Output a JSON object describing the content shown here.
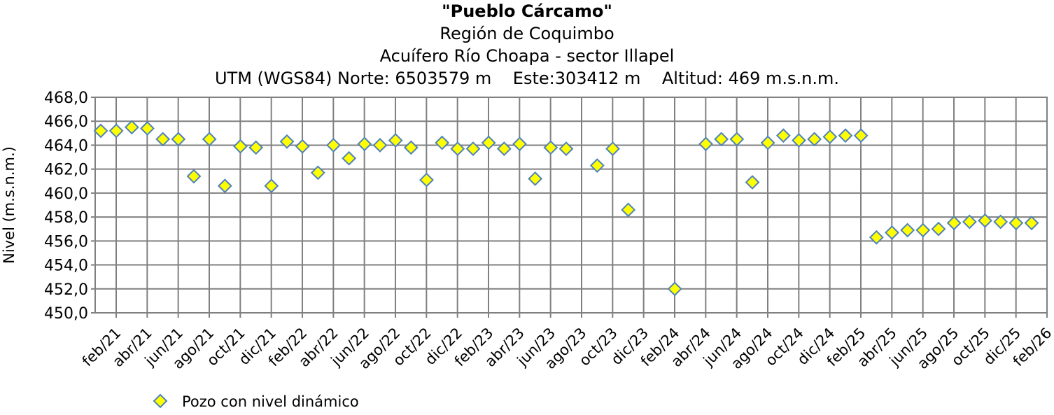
{
  "chart_data": {
    "type": "scatter",
    "title": "\"Pueblo Cárcamo\"",
    "subtitle_lines": [
      "Región de Coquimbo",
      "Acuífero Río Choapa - sector Illapel",
      "UTM (WGS84) Norte: 6503579 m    Este:303412 m    Altitud: 469 m.s.n.m."
    ],
    "ylabel": "Nivel (m.s.n.m.)",
    "xlabel": "",
    "ylim": [
      450,
      468
    ],
    "y_step": 2,
    "y_tick_labels": [
      "450,0",
      "452,0",
      "454,0",
      "456,0",
      "458,0",
      "460,0",
      "462,0",
      "464,0",
      "466,0",
      "468,0"
    ],
    "x_tick_labels": [
      "feb/21",
      "abr/21",
      "jun/21",
      "ago/21",
      "oct/21",
      "dic/21",
      "feb/22",
      "abr/22",
      "jun/22",
      "ago/22",
      "oct/22",
      "dic/22",
      "feb/23",
      "abr/23",
      "jun/23",
      "ago/23",
      "oct/23",
      "dic/23",
      "feb/24",
      "abr/24",
      "jun/24",
      "ago/24",
      "oct/24",
      "dic/24",
      "feb/25",
      "abr/25",
      "jun/25",
      "ago/25",
      "oct/25",
      "dic/25",
      "feb/26"
    ],
    "grid": true,
    "legend_position": "bottom-left",
    "series": [
      {
        "name": "Pozo con nivel dinámico",
        "color": "#ffff00",
        "edge_color": "#4f81bd",
        "marker": "diamond",
        "points": [
          {
            "x": "feb/21",
            "y": 465.2
          },
          {
            "x": "mar/21",
            "y": 465.2
          },
          {
            "x": "abr/21",
            "y": 465.5
          },
          {
            "x": "may/21",
            "y": 465.4
          },
          {
            "x": "jun/21",
            "y": 464.5
          },
          {
            "x": "jul/21",
            "y": 464.5
          },
          {
            "x": "ago/21",
            "y": 461.4
          },
          {
            "x": "sep/21",
            "y": 464.5
          },
          {
            "x": "oct/21",
            "y": 460.6
          },
          {
            "x": "nov/21",
            "y": 463.9
          },
          {
            "x": "dic/21",
            "y": 463.8
          },
          {
            "x": "ene/22",
            "y": 460.6
          },
          {
            "x": "feb/22",
            "y": 464.3
          },
          {
            "x": "mar/22",
            "y": 463.9
          },
          {
            "x": "abr/22",
            "y": 461.7
          },
          {
            "x": "may/22",
            "y": 464.0
          },
          {
            "x": "jun/22",
            "y": 462.9
          },
          {
            "x": "jul/22",
            "y": 464.1
          },
          {
            "x": "ago/22",
            "y": 464.0
          },
          {
            "x": "sep/22",
            "y": 464.4
          },
          {
            "x": "oct/22",
            "y": 463.8
          },
          {
            "x": "nov/22",
            "y": 461.1
          },
          {
            "x": "dic/22",
            "y": 464.2
          },
          {
            "x": "ene/23",
            "y": 463.7
          },
          {
            "x": "feb/23",
            "y": 463.7
          },
          {
            "x": "mar/23",
            "y": 464.2
          },
          {
            "x": "abr/23",
            "y": 463.7
          },
          {
            "x": "may/23",
            "y": 464.1
          },
          {
            "x": "jun/23",
            "y": 461.2
          },
          {
            "x": "jul/23",
            "y": 463.8
          },
          {
            "x": "ago/23",
            "y": 463.7
          },
          {
            "x": "oct/23",
            "y": 462.3
          },
          {
            "x": "nov/23",
            "y": 463.7
          },
          {
            "x": "dic/23",
            "y": 458.6
          },
          {
            "x": "mar/24",
            "y": 452.0
          },
          {
            "x": "may/24",
            "y": 464.1
          },
          {
            "x": "jun/24",
            "y": 464.5
          },
          {
            "x": "jul/24",
            "y": 464.5
          },
          {
            "x": "ago/24",
            "y": 460.9
          },
          {
            "x": "sep/24",
            "y": 464.2
          },
          {
            "x": "oct/24",
            "y": 464.8
          },
          {
            "x": "nov/24",
            "y": 464.4
          },
          {
            "x": "dic/24",
            "y": 464.5
          },
          {
            "x": "ene/25",
            "y": 464.7
          },
          {
            "x": "feb/25",
            "y": 464.8
          },
          {
            "x": "mar/25",
            "y": 464.8
          },
          {
            "x": "abr/25",
            "y": 456.3
          },
          {
            "x": "may/25",
            "y": 456.7
          },
          {
            "x": "jun/25",
            "y": 456.9
          },
          {
            "x": "jul/25",
            "y": 456.9
          },
          {
            "x": "ago/25",
            "y": 457.0
          },
          {
            "x": "sep/25",
            "y": 457.5
          },
          {
            "x": "oct/25",
            "y": 457.6
          },
          {
            "x": "nov/25",
            "y": 457.7
          },
          {
            "x": "dic/25",
            "y": 457.6
          },
          {
            "x": "ene/26",
            "y": 457.5
          },
          {
            "x": "feb/26",
            "y": 457.5
          }
        ]
      }
    ]
  }
}
